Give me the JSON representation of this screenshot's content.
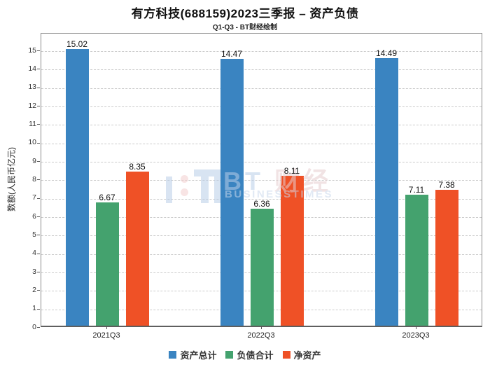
{
  "chart_data": {
    "type": "bar",
    "title": "有方科技(688159)2023三季报 – 资产负债",
    "subtitle": "Q1-Q3 - BT财经绘制",
    "ylabel": "数额(人民币亿元)",
    "xlabel": "",
    "categories": [
      "2021Q3",
      "2022Q3",
      "2023Q3"
    ],
    "series": [
      {
        "name": "资产总计",
        "color": "#3a84c1",
        "values": [
          15.02,
          14.47,
          14.49
        ]
      },
      {
        "name": "负债合计",
        "color": "#44a26e",
        "values": [
          6.67,
          6.36,
          7.11
        ]
      },
      {
        "name": "净资产",
        "color": "#ef5126",
        "values": [
          8.35,
          8.11,
          7.38
        ]
      }
    ],
    "value_labels": [
      "15.02",
      "6.67",
      "8.35",
      "14.47",
      "6.36",
      "8.11",
      "14.49",
      "7.11",
      "7.38"
    ],
    "ylim": [
      0,
      16
    ],
    "yticks": [
      0,
      1,
      2,
      3,
      4,
      5,
      6,
      7,
      8,
      9,
      10,
      11,
      12,
      13,
      14,
      15
    ],
    "grid": true,
    "grid_style": "dashed",
    "legend_position": "bottom"
  },
  "watermark": {
    "bt": "BT",
    "cn": " 财经",
    "sub": "BUSINESSTIMES"
  }
}
